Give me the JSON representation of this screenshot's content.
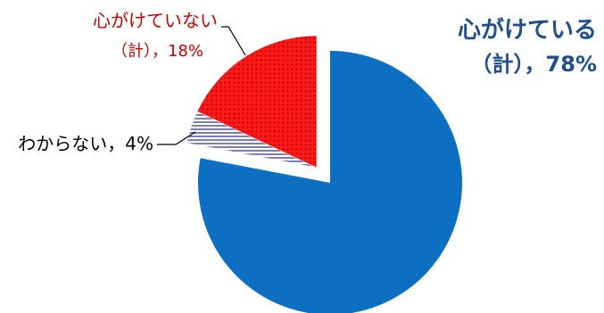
{
  "chart_data": {
    "type": "pie",
    "title": "",
    "slices": [
      {
        "name": "心がけている",
        "pct_text": "（計），78%",
        "value": 78,
        "color": "#0d6fc2",
        "pattern": "solid"
      },
      {
        "name": "わからない",
        "pct_text": "4%",
        "value": 4,
        "color": "#7f7fb0",
        "pattern": "stripes"
      },
      {
        "name": "心がけていない",
        "pct_text": "（計），18%",
        "value": 18,
        "color": "#e8141b",
        "pattern": "dots"
      }
    ],
    "label_texts": {
      "keeping_line1": "心がけている",
      "keeping_line2": "（計），78%",
      "unknown_line1": "わからない，4%",
      "notkeeping_line1": "心がけていない",
      "notkeeping_line2": "（計），18%"
    },
    "colors": {
      "keeping_text": "#1f4e8c",
      "notkeeping_text": "#c00000",
      "unknown_text": "#000000"
    }
  }
}
